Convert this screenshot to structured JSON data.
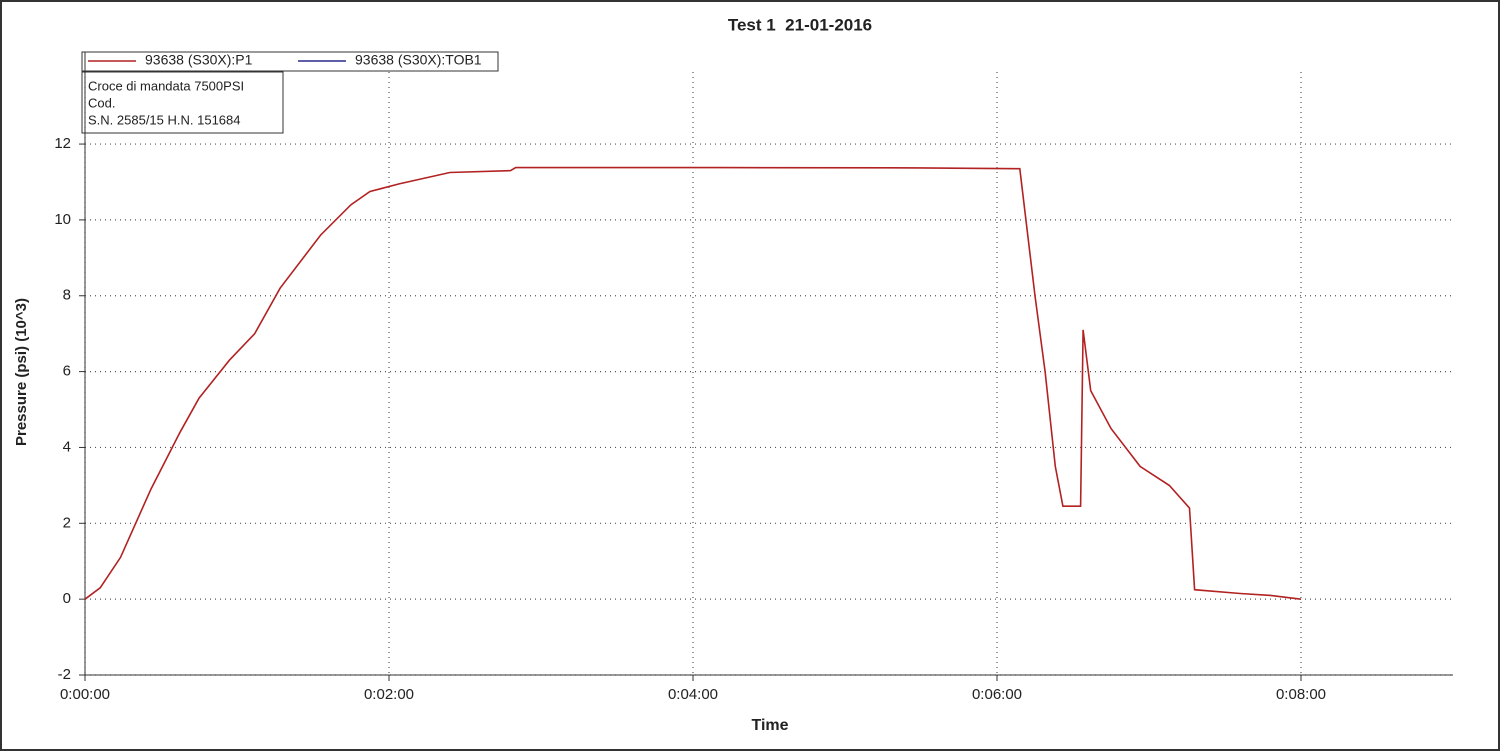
{
  "chart_data": {
    "type": "line",
    "title": "Test 1  21-01-2016",
    "x_label": "Time",
    "y_label": "Pressure (psi) (10^3)",
    "annotation": [
      "Croce di mandata 7500PSI",
      "Cod.",
      "S.N. 2585/15 H.N. 151684"
    ],
    "x": [
      0,
      6,
      14,
      26,
      37.5,
      45,
      57,
      67,
      77,
      93,
      105,
      112.5,
      124,
      144,
      168,
      170,
      250,
      330,
      369,
      375,
      379,
      383,
      386,
      393,
      394,
      397,
      405,
      416.5,
      428,
      436,
      438,
      456,
      468,
      480
    ],
    "series": [
      {
        "name": "93638 (S30X):P1",
        "color": "#b22222",
        "values": [
          0,
          0.3,
          1.1,
          2.9,
          4.4,
          5.3,
          6.3,
          7.0,
          8.2,
          9.6,
          10.4,
          10.75,
          10.95,
          11.25,
          11.3,
          11.38,
          11.38,
          11.37,
          11.35,
          8,
          6,
          3.5,
          2.45,
          2.45,
          7.1,
          5.5,
          4.5,
          3.5,
          3.0,
          2.4,
          0.25,
          0.15,
          0.1,
          0
        ]
      },
      {
        "name": "93638 (S30X):TOB1",
        "color": "#2a2a8c",
        "values": [
          null,
          null,
          null,
          null,
          null,
          null,
          null,
          null,
          null,
          null,
          null,
          null,
          null,
          null,
          null,
          null,
          null,
          null,
          null,
          null,
          null,
          null,
          null,
          null,
          null,
          null,
          null,
          null,
          null,
          null,
          null,
          null,
          null,
          null
        ]
      }
    ],
    "xlim": [
      0,
      540
    ],
    "xticks": [
      {
        "value": 0,
        "label": "0:00:00"
      },
      {
        "value": 120,
        "label": "0:02:00"
      },
      {
        "value": 240,
        "label": "0:04:00"
      },
      {
        "value": 360,
        "label": "0:06:00"
      },
      {
        "value": 480,
        "label": "0:08:00"
      }
    ],
    "ylim": [
      -2,
      13.9
    ],
    "yticks": [
      -2,
      0,
      2,
      4,
      6,
      8,
      10,
      12
    ],
    "grid": true
  }
}
